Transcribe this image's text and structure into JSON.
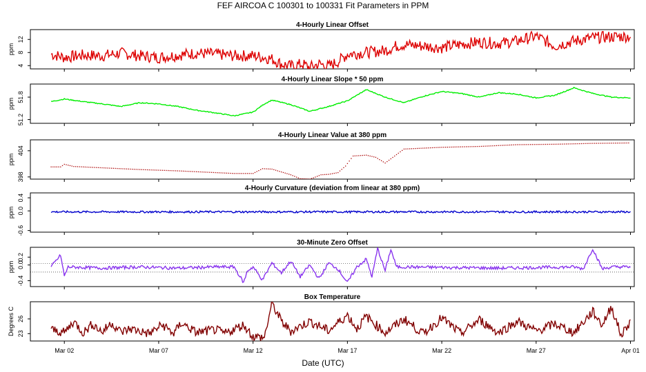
{
  "chart_data": {
    "type": "line",
    "title": "FEF   AIRCOA C   100301 to 100331   Fit Parameters in PPM",
    "xlabel": "Date (UTC)",
    "x_range_days": [
      0.2,
      32.2
    ],
    "x_ticks": [
      {
        "label": "Mar 02",
        "day": 2
      },
      {
        "label": "Mar 07",
        "day": 7
      },
      {
        "label": "Mar 12",
        "day": 12
      },
      {
        "label": "Mar 17",
        "day": 17
      },
      {
        "label": "Mar 22",
        "day": 22
      },
      {
        "label": "Mar 27",
        "day": 27
      },
      {
        "label": "Apr 01",
        "day": 32
      }
    ],
    "panels": [
      {
        "title": "4-Hourly Linear Offset",
        "ylabel": "ppm",
        "ylim": [
          3,
          15
        ],
        "yticks": [
          "4",
          "8",
          "12"
        ],
        "ytick_values": [
          4,
          8,
          12
        ],
        "color": "#dd0000",
        "style": "line",
        "noise": 0.15,
        "series": {
          "name": "Linear Offset",
          "x": [
            1.3,
            2,
            3,
            4,
            5,
            6,
            7,
            8,
            9,
            10,
            11,
            12,
            12.6,
            13,
            13.5,
            14,
            14.6,
            15,
            15.5,
            16,
            16.5,
            17,
            18,
            19,
            19.6,
            20,
            21,
            22,
            23,
            24,
            25,
            26,
            27,
            28,
            29,
            30,
            31,
            32
          ],
          "y": [
            7.5,
            6.5,
            7.2,
            7.0,
            7.8,
            7.0,
            6.5,
            7.2,
            7.8,
            7.5,
            7.0,
            7.0,
            6.5,
            6.0,
            4.5,
            3.8,
            4.5,
            3.5,
            4.5,
            3.8,
            5.2,
            7.5,
            8.0,
            8.6,
            10.0,
            10.4,
            10.0,
            9.5,
            10.5,
            11.2,
            10.8,
            11.5,
            13.0,
            10.0,
            11.5,
            12.5,
            12.8,
            13.0
          ]
        }
      },
      {
        "title": "4-Hourly Linear Slope * 50 ppm",
        "ylabel": "ppm",
        "ylim": [
          51.1,
          52.15
        ],
        "yticks": [
          "51.2",
          "51.8"
        ],
        "ytick_values": [
          51.2,
          51.8
        ],
        "color": "#00ee00",
        "style": "line",
        "noise": 0.012,
        "series": {
          "name": "Linear Slope * 50",
          "x": [
            1.3,
            2,
            3,
            4,
            5,
            6,
            7,
            8,
            9,
            10,
            11,
            12,
            12.6,
            13,
            14,
            15,
            16,
            17,
            17.5,
            18,
            19,
            20,
            21,
            22,
            23,
            24,
            25,
            26,
            27,
            28,
            29,
            30,
            31,
            32
          ],
          "y": [
            51.68,
            51.75,
            51.68,
            51.62,
            51.55,
            51.65,
            51.62,
            51.55,
            51.45,
            51.38,
            51.3,
            51.4,
            51.62,
            51.72,
            51.6,
            51.42,
            51.55,
            51.7,
            51.85,
            52.0,
            51.8,
            51.65,
            51.82,
            51.95,
            51.9,
            51.8,
            51.92,
            51.88,
            51.78,
            51.85,
            52.05,
            51.9,
            51.8,
            51.78
          ]
        }
      },
      {
        "title": "4-Hourly Linear Value at 380 ppm",
        "ylabel": "ppm",
        "ylim": [
          397.5,
          406.5
        ],
        "yticks": [
          "398",
          "404"
        ],
        "ytick_values": [
          398,
          404
        ],
        "color": "#aa0000",
        "style": "dots",
        "series": {
          "name": "Linear Value at 380",
          "x": [
            1.3,
            1.8,
            2.0,
            2.5,
            4,
            6,
            8,
            10,
            11,
            12,
            12.5,
            13,
            14,
            14.5,
            15,
            15.2,
            15.6,
            16,
            16.5,
            16.9,
            17.3,
            18,
            18.5,
            19,
            19.5,
            20,
            22,
            24,
            26,
            28,
            30,
            32
          ],
          "y": [
            400.3,
            400.3,
            400.9,
            400.4,
            400.1,
            399.7,
            399.4,
            399.0,
            398.8,
            398.8,
            399.9,
            399.8,
            398.5,
            397.6,
            397.5,
            397.8,
            398.5,
            398.6,
            399.0,
            400.5,
            402.8,
            403.0,
            402.5,
            401.2,
            402.8,
            404.4,
            404.8,
            405.0,
            405.4,
            405.5,
            405.7,
            405.8
          ]
        }
      },
      {
        "title": "4-Hourly Curvature (deviation from linear at 380 ppm)",
        "ylabel": "ppm",
        "ylim": [
          -0.65,
          0.55
        ],
        "yticks": [
          "-0.6",
          "0.0",
          "0.4"
        ],
        "ytick_values": [
          -0.6,
          0.0,
          0.4
        ],
        "color": "#0000cc",
        "style": "line",
        "noise": 0.025,
        "series": {
          "name": "Curvature",
          "x": [
            1.3,
            32
          ],
          "y": [
            -0.03,
            -0.03
          ]
        }
      },
      {
        "title": "30-Minute Zero Offset",
        "ylabel": "ppm",
        "ylim": [
          -0.55,
          0.45
        ],
        "yticks": [
          "-0.4",
          "0.0",
          "0.2"
        ],
        "ytick_values": [
          -0.4,
          0.0,
          0.2
        ],
        "hlines": [
          0.04,
          -0.18
        ],
        "color": "#8833ee",
        "style": "line",
        "noise": 0.04,
        "series": {
          "name": "Zero Offset",
          "x": [
            1.3,
            1.8,
            2.0,
            2.2,
            4,
            6,
            8,
            10,
            11,
            11.5,
            11.7,
            12,
            12.5,
            13,
            13.5,
            14,
            14.5,
            15,
            15.5,
            16,
            16.5,
            17,
            17.5,
            18,
            18.3,
            18.6,
            19,
            19.3,
            19.6,
            20,
            25,
            29,
            29.5,
            30,
            30.5,
            31,
            32
          ],
          "y": [
            -0.05,
            0.25,
            -0.28,
            -0.05,
            -0.08,
            -0.05,
            -0.08,
            -0.05,
            -0.05,
            -0.45,
            -0.15,
            -0.05,
            -0.38,
            0.05,
            -0.2,
            0.1,
            -0.3,
            0.0,
            -0.35,
            0.05,
            -0.1,
            -0.45,
            -0.05,
            0.15,
            -0.3,
            0.42,
            -0.15,
            0.4,
            -0.05,
            -0.05,
            -0.08,
            -0.05,
            -0.1,
            0.42,
            -0.1,
            -0.05,
            -0.05
          ]
        }
      },
      {
        "title": "Box Temperature",
        "ylabel": "Degrees C",
        "ylim": [
          21.5,
          29.5
        ],
        "yticks": [
          "23",
          "26"
        ],
        "ytick_values": [
          23,
          26
        ],
        "color": "#990000",
        "style": "line",
        "noise": 0.12,
        "series": {
          "name": "Box Temperature",
          "x": [
            1.3,
            2.0,
            2.5,
            3.0,
            3.5,
            4.0,
            4.5,
            5.0,
            5.5,
            6.5,
            7.2,
            7.8,
            8.2,
            9.0,
            10.0,
            10.5,
            11.5,
            12.0,
            12.6,
            13.0,
            13.5,
            14.0,
            15.0,
            16.0,
            17.0,
            17.5,
            18.0,
            19.0,
            20.0,
            21.0,
            22.0,
            23.0,
            24.0,
            25.0,
            26.0,
            27.0,
            28.0,
            29.0,
            30.0,
            30.5,
            31.0,
            31.5,
            32.0
          ],
          "y": [
            23.8,
            23.2,
            25.5,
            23.2,
            25.0,
            23.3,
            25.2,
            23.3,
            24.0,
            23.0,
            24.8,
            23.0,
            25.2,
            23.2,
            23.8,
            23.0,
            24.8,
            22.4,
            22.2,
            29.2,
            25.5,
            23.5,
            25.5,
            23.6,
            26.8,
            24.0,
            26.5,
            23.2,
            26.0,
            23.0,
            26.2,
            23.0,
            25.8,
            23.2,
            25.5,
            23.5,
            25.0,
            23.2,
            27.5,
            24.8,
            28.5,
            22.6,
            25.6
          ]
        }
      }
    ]
  }
}
